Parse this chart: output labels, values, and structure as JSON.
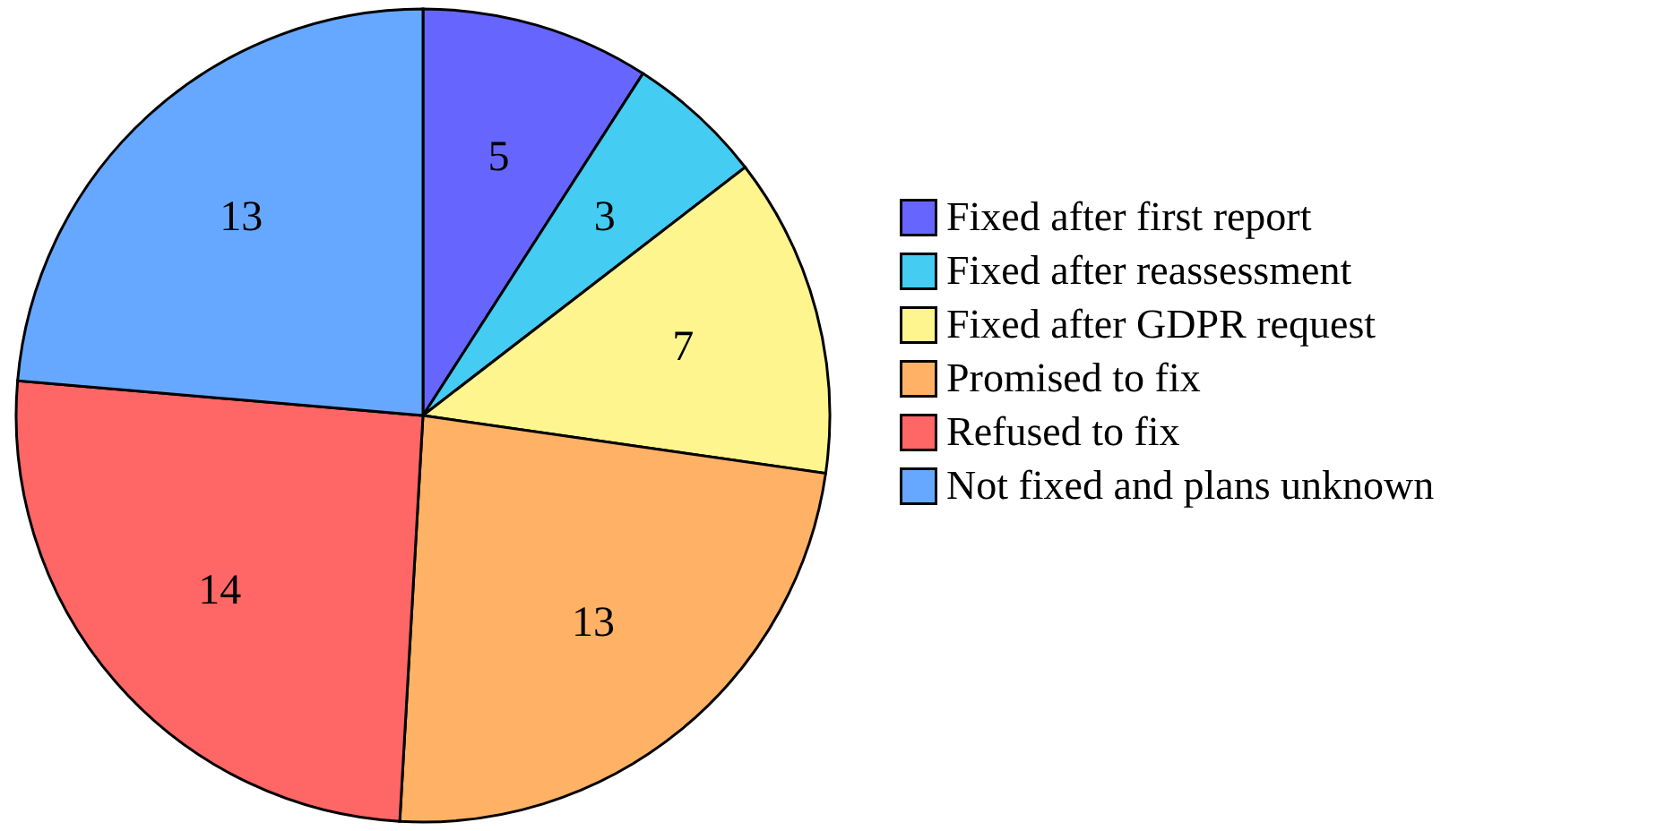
{
  "chart_data": {
    "type": "pie",
    "categories": [
      "Fixed after first report",
      "Fixed after reassessment",
      "Fixed after GDPR request",
      "Promised to fix",
      "Refused to fix",
      "Not fixed and plans unknown"
    ],
    "values": [
      5,
      3,
      7,
      13,
      14,
      13
    ],
    "colors": [
      "#6666ff",
      "#44ccf2",
      "#fff58f",
      "#ffb266",
      "#ff6666",
      "#66a8ff"
    ],
    "data_labels": true,
    "legend": "right"
  }
}
